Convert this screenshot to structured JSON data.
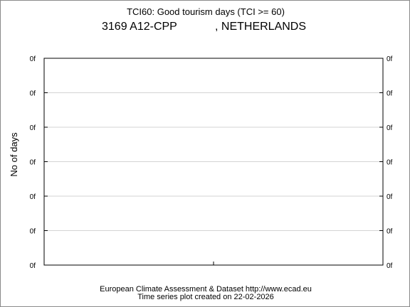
{
  "header": {
    "title": "TCI60: Good tourism days (TCI >= 60)",
    "station_left": "3169 A12-CPP",
    "station_right": ", NETHERLANDS"
  },
  "footer": {
    "line1": "European Climate Assessment & Dataset  http://www.ecad.eu",
    "line2": "Time series plot created on 22-02-2026"
  },
  "chart_data": {
    "type": "line",
    "title": "TCI60: Good tourism days (TCI >= 60)",
    "xlabel": "",
    "ylabel": "No of days",
    "y_tick_labels": [
      "0f",
      "0f",
      "0f",
      "0f",
      "0f",
      "0f",
      "0f"
    ],
    "series": [],
    "grid": true,
    "grid_color": "#d3d3d3"
  }
}
